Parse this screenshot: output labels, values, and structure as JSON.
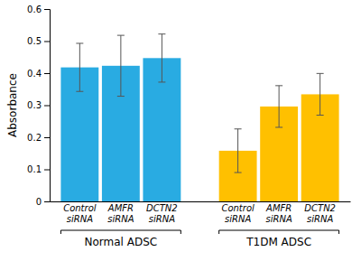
{
  "chart_data": {
    "type": "bar",
    "ylabel": "Absorbance",
    "categories": [
      "Control\nsiRNA",
      "AMFR\nsiRNA",
      "DCTN2\nsiRNA"
    ],
    "series": [
      {
        "name": "Normal ADSC",
        "color": "#29ABE2",
        "values": [
          0.418,
          0.423,
          0.447
        ],
        "errors": [
          0.075,
          0.095,
          0.075
        ]
      },
      {
        "name": "T1DM ADSC",
        "color": "#FFC000",
        "values": [
          0.158,
          0.296,
          0.334
        ],
        "errors": [
          0.068,
          0.065,
          0.065
        ]
      }
    ],
    "ylim": [
      0,
      0.6
    ],
    "yticks": [
      0,
      0.1,
      0.2,
      0.3,
      0.4,
      0.5,
      0.6
    ]
  }
}
